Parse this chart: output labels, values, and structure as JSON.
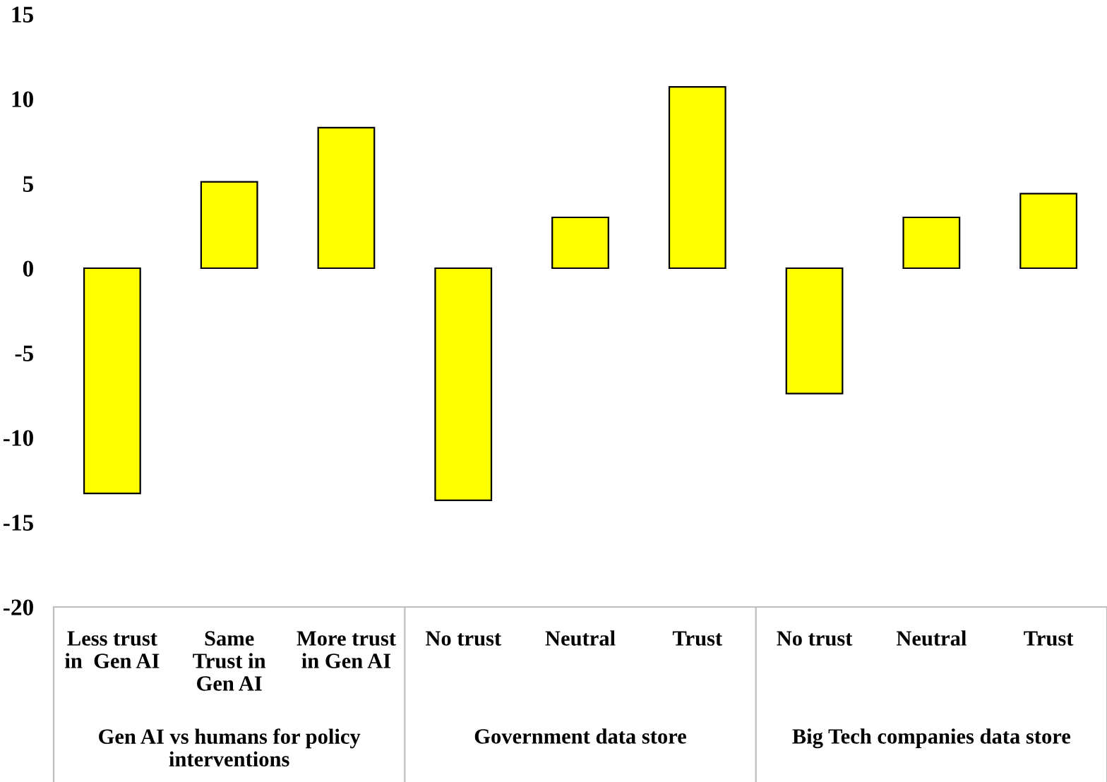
{
  "chart_data": {
    "type": "bar",
    "categories": [
      "Less trust\nin  Gen AI",
      "Same\nTrust in\nGen AI",
      "More trust\nin Gen AI",
      "No trust",
      "Neutral",
      "Trust",
      "No trust",
      "Neutral",
      "Trust"
    ],
    "values": [
      -13.3,
      5.1,
      8.3,
      -13.7,
      3.0,
      10.7,
      -7.4,
      3.0,
      4.4
    ],
    "color": "#ffff00",
    "ylim": [
      -20,
      15
    ],
    "yticks": [
      -20,
      -15,
      -10,
      -5,
      0,
      5,
      10,
      15
    ],
    "annotations": [
      "Gen AI vs humans for policy\ninterventions",
      "Government data store",
      "Big Tech companies data store"
    ],
    "grid": false,
    "legend": false
  }
}
